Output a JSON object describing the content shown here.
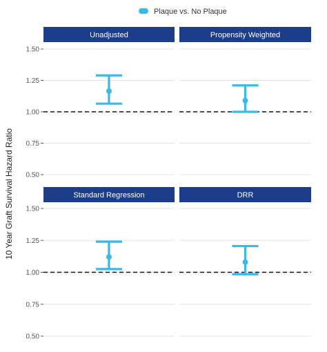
{
  "chart_data": {
    "type": "errorbar",
    "ylabel": "10 Year Graft Survival Hazard Ratio",
    "ylim": [
      0.5,
      1.5
    ],
    "yticks": [
      0.5,
      0.75,
      1.0,
      1.25,
      1.5
    ],
    "ytick_labels": [
      "0.50",
      "0.75",
      "1.00",
      "1.25",
      "1.50"
    ],
    "reference_line": 1.0,
    "grid": true,
    "legend": {
      "placement": "top",
      "entries": [
        "Plaque vs. No Plaque"
      ]
    },
    "colors": {
      "series": "#3bb7e8",
      "strip": "#1c3d8a",
      "reference": "#111111",
      "grid": "#e3e3e3"
    },
    "panels": [
      {
        "title": "Unadjusted",
        "estimate": 1.165,
        "lower": 1.065,
        "upper": 1.29
      },
      {
        "title": "Propensity Weighted",
        "estimate": 1.09,
        "lower": 1.0,
        "upper": 1.21
      },
      {
        "title": "Standard Regression",
        "estimate": 1.12,
        "lower": 1.025,
        "upper": 1.24
      },
      {
        "title": "DRR",
        "estimate": 1.08,
        "lower": 0.985,
        "upper": 1.205
      }
    ]
  }
}
